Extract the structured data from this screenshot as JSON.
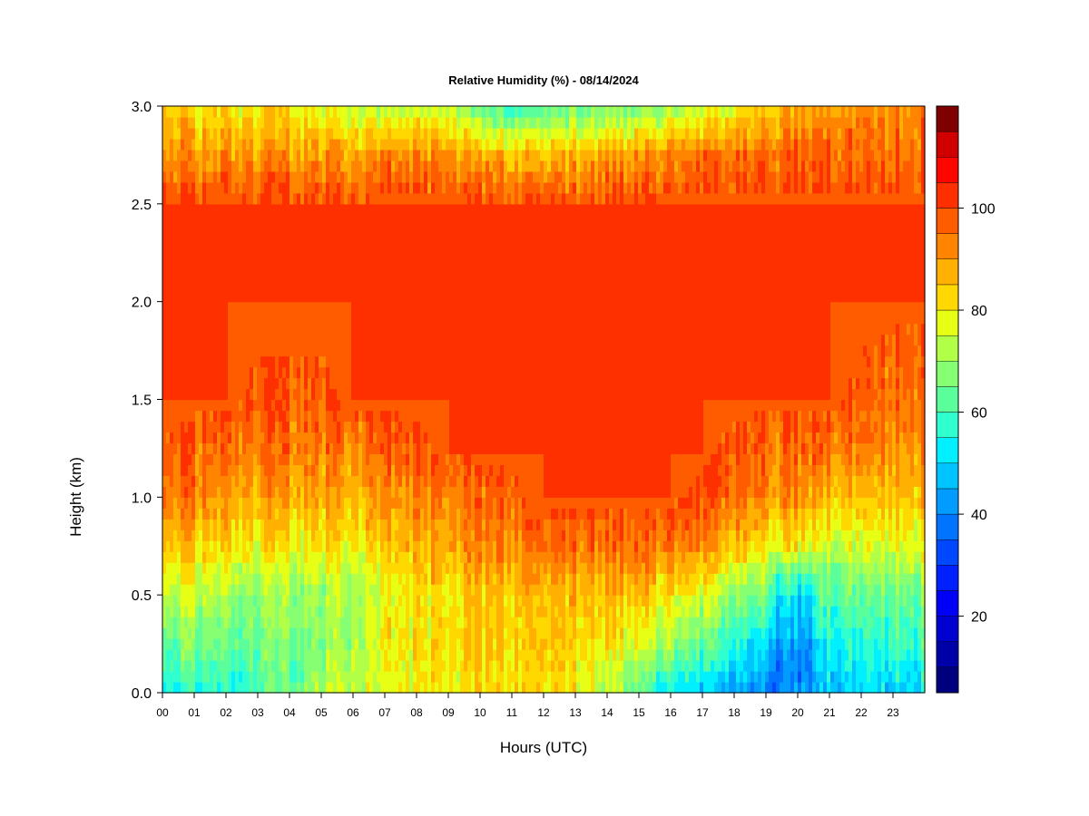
{
  "chart_data": {
    "type": "heatmap",
    "title": "Relative Humidity (%) - 08/14/2024",
    "xlabel": "Hours (UTC)",
    "ylabel": "Height (km)",
    "x_range_hours": [
      0,
      24
    ],
    "ylim": [
      0,
      3
    ],
    "x_ticks": [
      "00",
      "01",
      "02",
      "03",
      "04",
      "05",
      "06",
      "07",
      "08",
      "09",
      "10",
      "11",
      "12",
      "13",
      "14",
      "15",
      "16",
      "17",
      "18",
      "19",
      "20",
      "21",
      "22",
      "23"
    ],
    "y_ticks": [
      "0.0",
      "0.5",
      "1.0",
      "1.5",
      "2.0",
      "2.5",
      "3.0"
    ],
    "colorbar": {
      "min": 5,
      "max": 100,
      "step": 5,
      "tick_labels": [
        "20",
        "40",
        "60",
        "80",
        "100"
      ],
      "tick_values": [
        20,
        40,
        60,
        80,
        100
      ],
      "colors": [
        "#00007f",
        "#0000a8",
        "#0000d0",
        "#0000f9",
        "#0020ff",
        "#0048ff",
        "#0074ff",
        "#009cff",
        "#00c4ff",
        "#00f0ff",
        "#30ffd0",
        "#5aff9c",
        "#86ff72",
        "#b2ff48",
        "#e6ff14",
        "#ffd800",
        "#ffb000",
        "#ff8400",
        "#ff5c00",
        "#ff3000",
        "#ff0500",
        "#d00000",
        "#7f0000"
      ]
    },
    "height_grid_km": [
      0.0,
      0.25,
      0.5,
      0.75,
      1.0,
      1.25,
      1.5,
      2.0,
      2.5,
      2.75,
      3.0
    ],
    "time_grid_hours": [
      0,
      1,
      2,
      3,
      4,
      5,
      6,
      7,
      8,
      9,
      10,
      11,
      12,
      13,
      14,
      15,
      16,
      17,
      18,
      19,
      20,
      21,
      22,
      23,
      24
    ],
    "rh_profiles": [
      [
        52,
        62,
        72,
        84,
        94,
        97,
        100,
        100,
        100,
        90,
        85
      ],
      [
        58,
        66,
        74,
        84,
        94,
        97,
        100,
        100,
        100,
        90,
        80
      ],
      [
        58,
        64,
        72,
        82,
        90,
        96,
        100,
        100,
        100,
        92,
        82
      ],
      [
        60,
        64,
        68,
        80,
        88,
        94,
        98,
        100,
        100,
        90,
        80
      ],
      [
        62,
        66,
        70,
        80,
        88,
        94,
        98,
        100,
        100,
        90,
        80
      ],
      [
        72,
        68,
        70,
        80,
        88,
        94,
        98,
        100,
        100,
        90,
        76
      ],
      [
        74,
        72,
        72,
        80,
        88,
        94,
        100,
        100,
        100,
        90,
        74
      ],
      [
        76,
        78,
        76,
        84,
        90,
        96,
        100,
        100,
        100,
        92,
        72
      ],
      [
        78,
        80,
        80,
        86,
        92,
        98,
        100,
        100,
        100,
        92,
        72
      ],
      [
        80,
        82,
        82,
        88,
        94,
        100,
        100,
        100,
        100,
        92,
        74
      ],
      [
        82,
        84,
        84,
        92,
        96,
        100,
        100,
        100,
        100,
        88,
        62
      ],
      [
        82,
        84,
        86,
        94,
        98,
        100,
        100,
        100,
        100,
        86,
        58
      ],
      [
        82,
        84,
        86,
        96,
        100,
        100,
        100,
        100,
        100,
        86,
        60
      ],
      [
        80,
        84,
        86,
        96,
        100,
        100,
        100,
        100,
        100,
        88,
        64
      ],
      [
        72,
        82,
        86,
        96,
        100,
        100,
        100,
        100,
        100,
        90,
        66
      ],
      [
        62,
        76,
        84,
        96,
        100,
        100,
        100,
        100,
        100,
        90,
        66
      ],
      [
        52,
        70,
        80,
        94,
        100,
        100,
        100,
        100,
        100,
        92,
        68
      ],
      [
        46,
        62,
        74,
        90,
        98,
        100,
        100,
        100,
        100,
        94,
        72
      ],
      [
        44,
        56,
        68,
        84,
        94,
        98,
        100,
        100,
        100,
        94,
        78
      ],
      [
        38,
        50,
        64,
        80,
        92,
        96,
        100,
        100,
        100,
        96,
        84
      ],
      [
        34,
        46,
        58,
        78,
        90,
        96,
        100,
        100,
        100,
        96,
        88
      ],
      [
        48,
        54,
        62,
        74,
        86,
        94,
        100,
        100,
        100,
        96,
        90
      ],
      [
        50,
        56,
        64,
        76,
        86,
        94,
        98,
        100,
        100,
        96,
        92
      ],
      [
        50,
        58,
        66,
        78,
        86,
        92,
        96,
        100,
        100,
        96,
        92
      ],
      [
        52,
        60,
        66,
        78,
        86,
        92,
        96,
        100,
        100,
        96,
        92
      ]
    ],
    "dry_notch": {
      "start_hour": 19.3,
      "end_hour": 20.6,
      "top_km": 0.75,
      "rh": 40
    }
  }
}
